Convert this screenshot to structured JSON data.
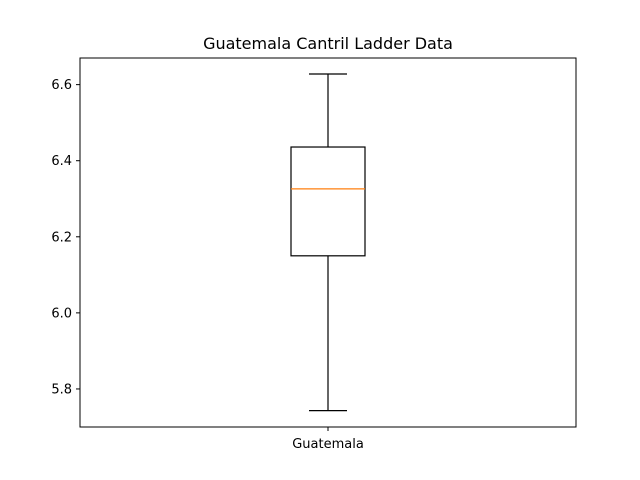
{
  "chart_data": {
    "type": "box",
    "title": "Guatemala Cantril Ladder Data",
    "xlabel": "",
    "ylabel": "",
    "categories": [
      "Guatemala"
    ],
    "series": [
      {
        "min": 5.743,
        "q1": 6.15,
        "median": 6.326,
        "q3": 6.436,
        "max": 6.628
      }
    ],
    "ylim": [
      5.7,
      6.67
    ],
    "yticks": [
      "5.8",
      "6.0",
      "6.2",
      "6.4",
      "6.6"
    ],
    "grid": false,
    "colors": {
      "box": "#000000",
      "median": "#ff7f0e"
    }
  }
}
